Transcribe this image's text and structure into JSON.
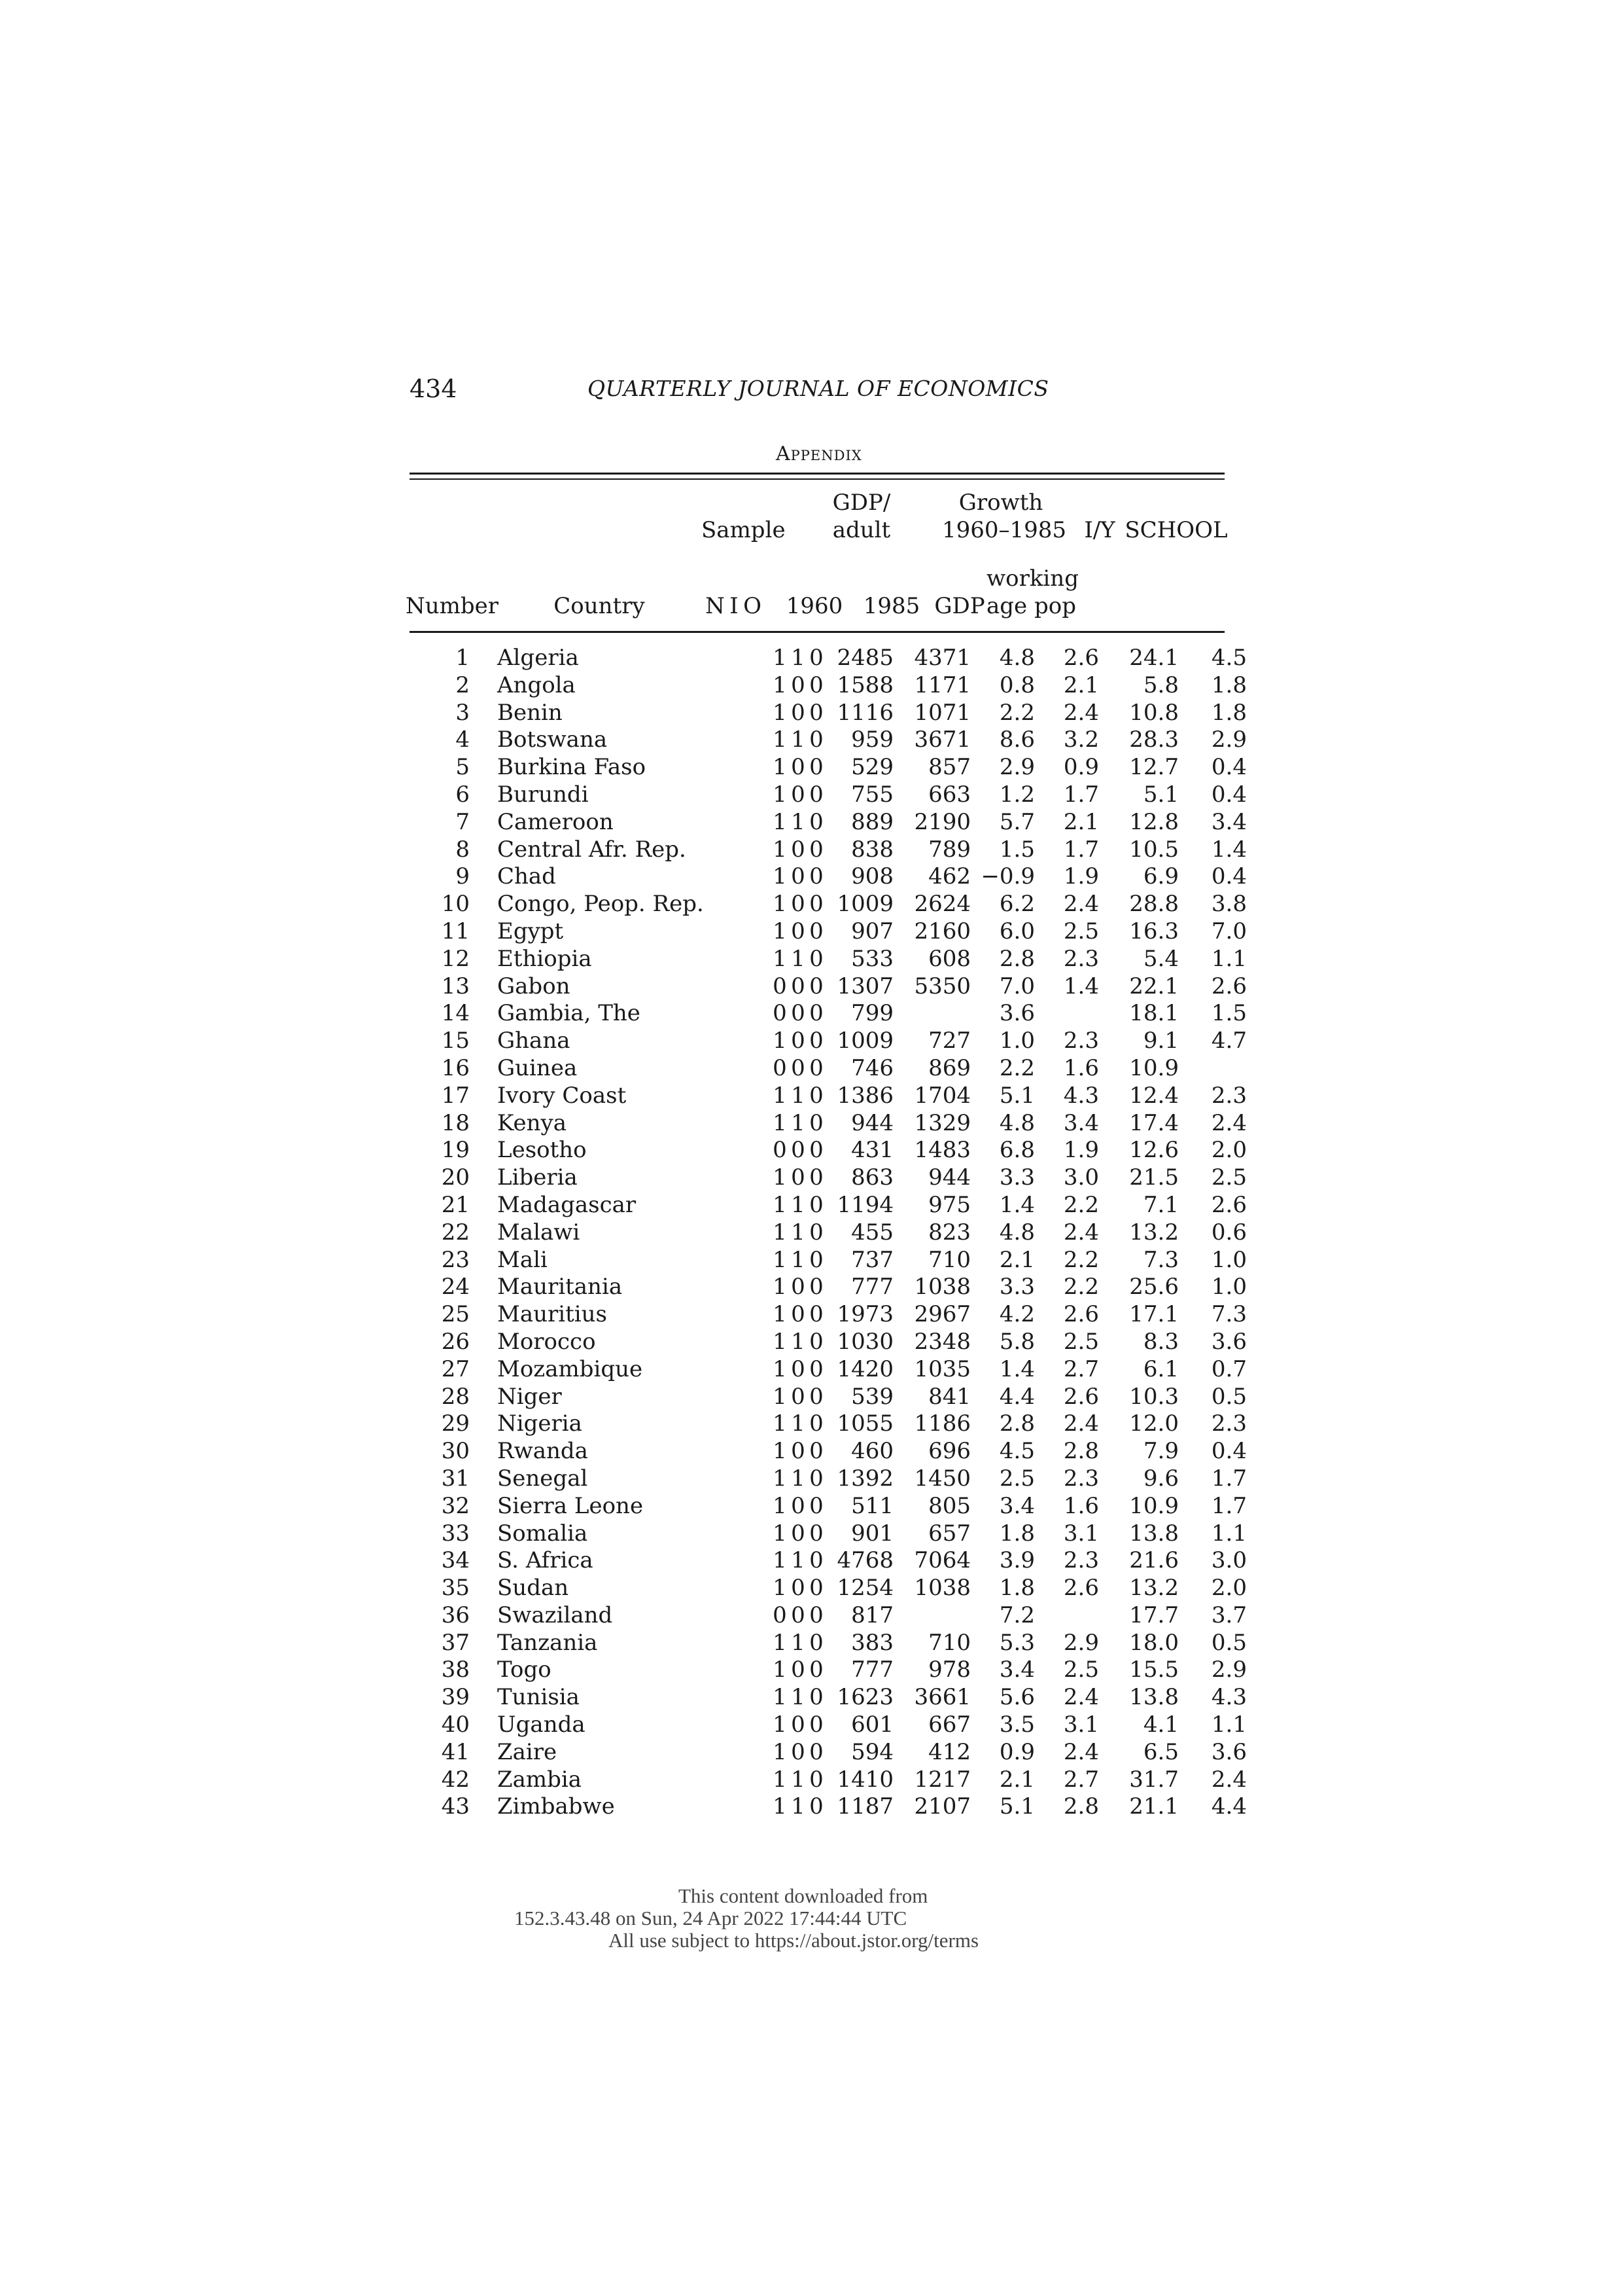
{
  "page": {
    "number": "434",
    "journal": "QUARTERLY JOURNAL OF ECONOMICS",
    "section": "Appendix"
  },
  "table": {
    "headers": {
      "sample": "Sample",
      "gdp_adult_line1": "GDP/",
      "gdp_adult_line2": "adult",
      "growth_line1": "Growth",
      "growth_line2": "1960–1985",
      "iy": "I/Y",
      "school": "SCHOOL",
      "number": "Number",
      "country": "Country",
      "n": "N",
      "i": "I",
      "o": "O",
      "y1960": "1960",
      "y1985": "1985",
      "gdp": "GDP",
      "working": "working",
      "age_pop": "age pop"
    },
    "rows": [
      {
        "num": "1",
        "country": "Algeria",
        "n": "1",
        "i": "1",
        "o": "0",
        "g60": "2485",
        "g85": "4371",
        "ggdp": "4.8",
        "gwap": "2.6",
        "iy": "24.1",
        "school": "4.5"
      },
      {
        "num": "2",
        "country": "Angola",
        "n": "1",
        "i": "0",
        "o": "0",
        "g60": "1588",
        "g85": "1171",
        "ggdp": "0.8",
        "gwap": "2.1",
        "iy": "5.8",
        "school": "1.8"
      },
      {
        "num": "3",
        "country": "Benin",
        "n": "1",
        "i": "0",
        "o": "0",
        "g60": "1116",
        "g85": "1071",
        "ggdp": "2.2",
        "gwap": "2.4",
        "iy": "10.8",
        "school": "1.8"
      },
      {
        "num": "4",
        "country": "Botswana",
        "n": "1",
        "i": "1",
        "o": "0",
        "g60": "959",
        "g85": "3671",
        "ggdp": "8.6",
        "gwap": "3.2",
        "iy": "28.3",
        "school": "2.9"
      },
      {
        "num": "5",
        "country": "Burkina Faso",
        "n": "1",
        "i": "0",
        "o": "0",
        "g60": "529",
        "g85": "857",
        "ggdp": "2.9",
        "gwap": "0.9",
        "iy": "12.7",
        "school": "0.4"
      },
      {
        "num": "6",
        "country": "Burundi",
        "n": "1",
        "i": "0",
        "o": "0",
        "g60": "755",
        "g85": "663",
        "ggdp": "1.2",
        "gwap": "1.7",
        "iy": "5.1",
        "school": "0.4"
      },
      {
        "num": "7",
        "country": "Cameroon",
        "n": "1",
        "i": "1",
        "o": "0",
        "g60": "889",
        "g85": "2190",
        "ggdp": "5.7",
        "gwap": "2.1",
        "iy": "12.8",
        "school": "3.4"
      },
      {
        "num": "8",
        "country": "Central Afr. Rep.",
        "n": "1",
        "i": "0",
        "o": "0",
        "g60": "838",
        "g85": "789",
        "ggdp": "1.5",
        "gwap": "1.7",
        "iy": "10.5",
        "school": "1.4"
      },
      {
        "num": "9",
        "country": "Chad",
        "n": "1",
        "i": "0",
        "o": "0",
        "g60": "908",
        "g85": "462",
        "ggdp": "−0.9",
        "gwap": "1.9",
        "iy": "6.9",
        "school": "0.4"
      },
      {
        "num": "10",
        "country": "Congo, Peop. Rep.",
        "n": "1",
        "i": "0",
        "o": "0",
        "g60": "1009",
        "g85": "2624",
        "ggdp": "6.2",
        "gwap": "2.4",
        "iy": "28.8",
        "school": "3.8"
      },
      {
        "num": "11",
        "country": "Egypt",
        "n": "1",
        "i": "0",
        "o": "0",
        "g60": "907",
        "g85": "2160",
        "ggdp": "6.0",
        "gwap": "2.5",
        "iy": "16.3",
        "school": "7.0"
      },
      {
        "num": "12",
        "country": "Ethiopia",
        "n": "1",
        "i": "1",
        "o": "0",
        "g60": "533",
        "g85": "608",
        "ggdp": "2.8",
        "gwap": "2.3",
        "iy": "5.4",
        "school": "1.1"
      },
      {
        "num": "13",
        "country": "Gabon",
        "n": "0",
        "i": "0",
        "o": "0",
        "g60": "1307",
        "g85": "5350",
        "ggdp": "7.0",
        "gwap": "1.4",
        "iy": "22.1",
        "school": "2.6"
      },
      {
        "num": "14",
        "country": "Gambia, The",
        "n": "0",
        "i": "0",
        "o": "0",
        "g60": "799",
        "g85": "",
        "ggdp": "3.6",
        "gwap": "",
        "iy": "18.1",
        "school": "1.5"
      },
      {
        "num": "15",
        "country": "Ghana",
        "n": "1",
        "i": "0",
        "o": "0",
        "g60": "1009",
        "g85": "727",
        "ggdp": "1.0",
        "gwap": "2.3",
        "iy": "9.1",
        "school": "4.7"
      },
      {
        "num": "16",
        "country": "Guinea",
        "n": "0",
        "i": "0",
        "o": "0",
        "g60": "746",
        "g85": "869",
        "ggdp": "2.2",
        "gwap": "1.6",
        "iy": "10.9",
        "school": ""
      },
      {
        "num": "17",
        "country": "Ivory Coast",
        "n": "1",
        "i": "1",
        "o": "0",
        "g60": "1386",
        "g85": "1704",
        "ggdp": "5.1",
        "gwap": "4.3",
        "iy": "12.4",
        "school": "2.3"
      },
      {
        "num": "18",
        "country": "Kenya",
        "n": "1",
        "i": "1",
        "o": "0",
        "g60": "944",
        "g85": "1329",
        "ggdp": "4.8",
        "gwap": "3.4",
        "iy": "17.4",
        "school": "2.4"
      },
      {
        "num": "19",
        "country": "Lesotho",
        "n": "0",
        "i": "0",
        "o": "0",
        "g60": "431",
        "g85": "1483",
        "ggdp": "6.8",
        "gwap": "1.9",
        "iy": "12.6",
        "school": "2.0"
      },
      {
        "num": "20",
        "country": "Liberia",
        "n": "1",
        "i": "0",
        "o": "0",
        "g60": "863",
        "g85": "944",
        "ggdp": "3.3",
        "gwap": "3.0",
        "iy": "21.5",
        "school": "2.5"
      },
      {
        "num": "21",
        "country": "Madagascar",
        "n": "1",
        "i": "1",
        "o": "0",
        "g60": "1194",
        "g85": "975",
        "ggdp": "1.4",
        "gwap": "2.2",
        "iy": "7.1",
        "school": "2.6"
      },
      {
        "num": "22",
        "country": "Malawi",
        "n": "1",
        "i": "1",
        "o": "0",
        "g60": "455",
        "g85": "823",
        "ggdp": "4.8",
        "gwap": "2.4",
        "iy": "13.2",
        "school": "0.6"
      },
      {
        "num": "23",
        "country": "Mali",
        "n": "1",
        "i": "1",
        "o": "0",
        "g60": "737",
        "g85": "710",
        "ggdp": "2.1",
        "gwap": "2.2",
        "iy": "7.3",
        "school": "1.0"
      },
      {
        "num": "24",
        "country": "Mauritania",
        "n": "1",
        "i": "0",
        "o": "0",
        "g60": "777",
        "g85": "1038",
        "ggdp": "3.3",
        "gwap": "2.2",
        "iy": "25.6",
        "school": "1.0"
      },
      {
        "num": "25",
        "country": "Mauritius",
        "n": "1",
        "i": "0",
        "o": "0",
        "g60": "1973",
        "g85": "2967",
        "ggdp": "4.2",
        "gwap": "2.6",
        "iy": "17.1",
        "school": "7.3"
      },
      {
        "num": "26",
        "country": "Morocco",
        "n": "1",
        "i": "1",
        "o": "0",
        "g60": "1030",
        "g85": "2348",
        "ggdp": "5.8",
        "gwap": "2.5",
        "iy": "8.3",
        "school": "3.6"
      },
      {
        "num": "27",
        "country": "Mozambique",
        "n": "1",
        "i": "0",
        "o": "0",
        "g60": "1420",
        "g85": "1035",
        "ggdp": "1.4",
        "gwap": "2.7",
        "iy": "6.1",
        "school": "0.7"
      },
      {
        "num": "28",
        "country": "Niger",
        "n": "1",
        "i": "0",
        "o": "0",
        "g60": "539",
        "g85": "841",
        "ggdp": "4.4",
        "gwap": "2.6",
        "iy": "10.3",
        "school": "0.5"
      },
      {
        "num": "29",
        "country": "Nigeria",
        "n": "1",
        "i": "1",
        "o": "0",
        "g60": "1055",
        "g85": "1186",
        "ggdp": "2.8",
        "gwap": "2.4",
        "iy": "12.0",
        "school": "2.3"
      },
      {
        "num": "30",
        "country": "Rwanda",
        "n": "1",
        "i": "0",
        "o": "0",
        "g60": "460",
        "g85": "696",
        "ggdp": "4.5",
        "gwap": "2.8",
        "iy": "7.9",
        "school": "0.4"
      },
      {
        "num": "31",
        "country": "Senegal",
        "n": "1",
        "i": "1",
        "o": "0",
        "g60": "1392",
        "g85": "1450",
        "ggdp": "2.5",
        "gwap": "2.3",
        "iy": "9.6",
        "school": "1.7"
      },
      {
        "num": "32",
        "country": "Sierra Leone",
        "n": "1",
        "i": "0",
        "o": "0",
        "g60": "511",
        "g85": "805",
        "ggdp": "3.4",
        "gwap": "1.6",
        "iy": "10.9",
        "school": "1.7"
      },
      {
        "num": "33",
        "country": "Somalia",
        "n": "1",
        "i": "0",
        "o": "0",
        "g60": "901",
        "g85": "657",
        "ggdp": "1.8",
        "gwap": "3.1",
        "iy": "13.8",
        "school": "1.1"
      },
      {
        "num": "34",
        "country": "S. Africa",
        "n": "1",
        "i": "1",
        "o": "0",
        "g60": "4768",
        "g85": "7064",
        "ggdp": "3.9",
        "gwap": "2.3",
        "iy": "21.6",
        "school": "3.0"
      },
      {
        "num": "35",
        "country": "Sudan",
        "n": "1",
        "i": "0",
        "o": "0",
        "g60": "1254",
        "g85": "1038",
        "ggdp": "1.8",
        "gwap": "2.6",
        "iy": "13.2",
        "school": "2.0"
      },
      {
        "num": "36",
        "country": "Swaziland",
        "n": "0",
        "i": "0",
        "o": "0",
        "g60": "817",
        "g85": "",
        "ggdp": "7.2",
        "gwap": "",
        "iy": "17.7",
        "school": "3.7"
      },
      {
        "num": "37",
        "country": "Tanzania",
        "n": "1",
        "i": "1",
        "o": "0",
        "g60": "383",
        "g85": "710",
        "ggdp": "5.3",
        "gwap": "2.9",
        "iy": "18.0",
        "school": "0.5"
      },
      {
        "num": "38",
        "country": "Togo",
        "n": "1",
        "i": "0",
        "o": "0",
        "g60": "777",
        "g85": "978",
        "ggdp": "3.4",
        "gwap": "2.5",
        "iy": "15.5",
        "school": "2.9"
      },
      {
        "num": "39",
        "country": "Tunisia",
        "n": "1",
        "i": "1",
        "o": "0",
        "g60": "1623",
        "g85": "3661",
        "ggdp": "5.6",
        "gwap": "2.4",
        "iy": "13.8",
        "school": "4.3"
      },
      {
        "num": "40",
        "country": "Uganda",
        "n": "1",
        "i": "0",
        "o": "0",
        "g60": "601",
        "g85": "667",
        "ggdp": "3.5",
        "gwap": "3.1",
        "iy": "4.1",
        "school": "1.1"
      },
      {
        "num": "41",
        "country": "Zaire",
        "n": "1",
        "i": "0",
        "o": "0",
        "g60": "594",
        "g85": "412",
        "ggdp": "0.9",
        "gwap": "2.4",
        "iy": "6.5",
        "school": "3.6"
      },
      {
        "num": "42",
        "country": "Zambia",
        "n": "1",
        "i": "1",
        "o": "0",
        "g60": "1410",
        "g85": "1217",
        "ggdp": "2.1",
        "gwap": "2.7",
        "iy": "31.7",
        "school": "2.4"
      },
      {
        "num": "43",
        "country": "Zimbabwe",
        "n": "1",
        "i": "1",
        "o": "0",
        "g60": "1187",
        "g85": "2107",
        "ggdp": "5.1",
        "gwap": "2.8",
        "iy": "21.1",
        "school": "4.4"
      }
    ]
  },
  "footer": {
    "line1": "This content downloaded from",
    "line2": "152.3.43.48 on Sun, 24 Apr 2022 17:44:44 UTC",
    "line3": "All use subject to https://about.jstor.org/terms"
  }
}
